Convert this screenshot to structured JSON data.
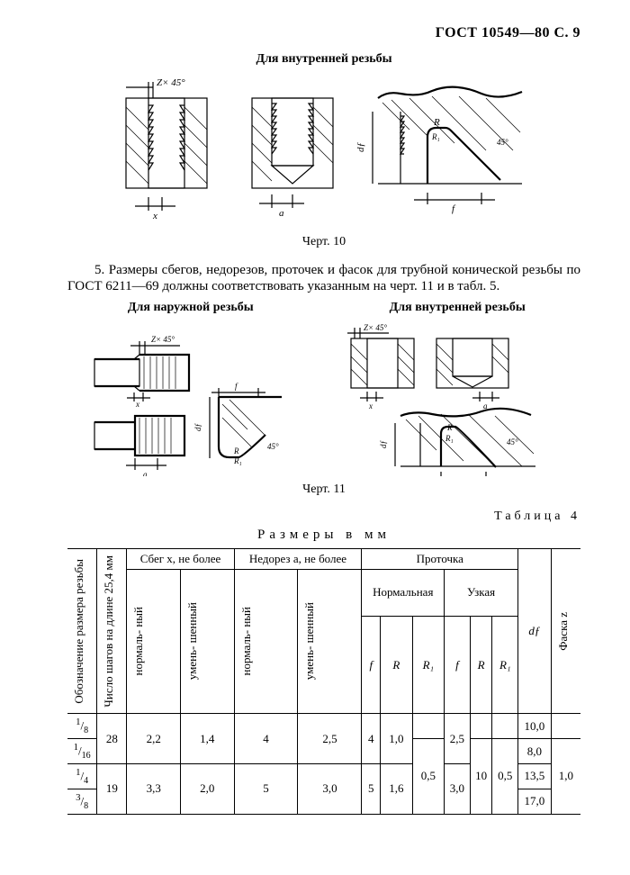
{
  "header": "ГОСТ 10549—80 С. 9",
  "section_top_title": "Для внутренней резьбы",
  "fig10": {
    "caption": "Черт. 10",
    "labels": {
      "zx45": "Z× 45°",
      "x": "x",
      "a": "a",
      "R": "R",
      "R1": "R₁",
      "df": "dƒ",
      "f": "f",
      "ang45": "45°"
    }
  },
  "para5": "5. Размеры сбегов, недорезов,   проточек и фасок для трубной конической резьбы по  ГОСТ 6211—69  должны соответствовать указанным на черт. 11 и в табл. 5.",
  "cols": {
    "left": "Для наружной резьбы",
    "right": "Для внутренней резьбы"
  },
  "fig11": {
    "caption": "Черт. 11",
    "labels": {
      "zx45": "Z× 45°",
      "x": "x",
      "a": "a",
      "R": "R",
      "R1": "R₁",
      "df": "dƒ",
      "f": "f",
      "ang45": "45°"
    }
  },
  "table4": {
    "label": "Таблица 4",
    "title": "Размеры  в мм",
    "head": {
      "c1": "Обозначение размера резьбы",
      "c2": "Число шагов на длине 25,4 мм",
      "sbeg": "Сбег x, не более",
      "nedorez": "Недорез a, не более",
      "protochka": "Проточка",
      "norm": "нормаль-\nный",
      "umen": "умень-\nшенный",
      "normF": "Нормальная",
      "uzk": "Узкая",
      "f": "f",
      "R": "R",
      "R1": "R₁",
      "df": "dƒ",
      "faska": "Фаска z"
    },
    "rows": [
      {
        "size_num": "1",
        "size_den": "8",
        "steps": "28",
        "sbeg_n": "2,2",
        "sbeg_u": "1,4",
        "ned_n": "4",
        "ned_u": "2,5",
        "pn_f": "4",
        "pn_R": "1,0",
        "pn_R1": "",
        "pu_f": "2,5",
        "pu_R": "",
        "pu_R1": "",
        "df": "10,0",
        "faska": ""
      },
      {
        "size_num": "1",
        "size_den": "16",
        "steps": "",
        "sbeg_n": "",
        "sbeg_u": "",
        "ned_n": "",
        "ned_u": "",
        "pn_f": "",
        "pn_R": "",
        "pn_R1": "0,5",
        "pu_f": "",
        "pu_R": "10",
        "pu_R1": "0,5",
        "df": "8,0",
        "faska": "1,0"
      },
      {
        "size_num": "1",
        "size_den": "4",
        "steps": "19",
        "sbeg_n": "3,3",
        "sbeg_u": "2,0",
        "ned_n": "5",
        "ned_u": "3,0",
        "pn_f": "5",
        "pn_R": "1,6",
        "pn_R1": "",
        "pu_f": "3,0",
        "pu_R": "",
        "pu_R1": "",
        "df": "13,5",
        "faska": ""
      },
      {
        "size_num": "3",
        "size_den": "8",
        "steps": "",
        "sbeg_n": "",
        "sbeg_u": "",
        "ned_n": "",
        "ned_u": "",
        "pn_f": "",
        "pn_R": "",
        "pn_R1": "",
        "pu_f": "",
        "pu_R": "",
        "pu_R1": "",
        "df": "17,0",
        "faska": ""
      }
    ]
  }
}
